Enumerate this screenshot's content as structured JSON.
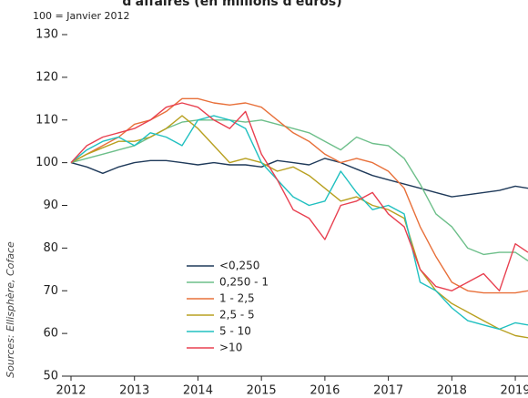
{
  "chart_data": {
    "type": "line",
    "title": "d'affaires (en millions d'euros)",
    "subtitle": "100 = Janvier 2012",
    "source": "Sources: Ellisphère, Coface",
    "x": [
      2012,
      2012.25,
      2012.5,
      2012.75,
      2013,
      2013.25,
      2013.5,
      2013.75,
      2014,
      2014.25,
      2014.5,
      2014.75,
      2015,
      2015.25,
      2015.5,
      2015.75,
      2016,
      2016.25,
      2016.5,
      2016.75,
      2017,
      2017.25,
      2017.5,
      2017.75,
      2018,
      2018.25,
      2018.5,
      2018.75,
      2019,
      2019.2
    ],
    "series": [
      {
        "name": "<0,250",
        "color": "#1f3a5a",
        "values": [
          100,
          99,
          97.5,
          99,
          100,
          100.5,
          100.5,
          100,
          99.5,
          100,
          99.5,
          99.5,
          99,
          100.5,
          100,
          99.5,
          101,
          100,
          98.5,
          97,
          96,
          95,
          94,
          93,
          92,
          92.5,
          93,
          93.5,
          94.5,
          94
        ]
      },
      {
        "name": "0,250 - 1",
        "color": "#6dbf8a",
        "values": [
          100,
          101,
          102,
          103,
          104,
          106,
          108,
          109.5,
          110,
          110,
          110,
          109.5,
          110,
          109,
          108,
          107,
          105,
          103,
          106,
          104.5,
          104,
          101,
          95,
          88,
          85,
          80,
          78.5,
          79,
          79,
          77
        ]
      },
      {
        "name": "1 - 2,5",
        "color": "#e8703a",
        "values": [
          100,
          102,
          104,
          106,
          109,
          110,
          112,
          115,
          115,
          114,
          113.5,
          114,
          113,
          110,
          107,
          105,
          102,
          100,
          101,
          100,
          98,
          94,
          85,
          78,
          72,
          70,
          69.5,
          69.5,
          69.5,
          70
        ]
      },
      {
        "name": "2,5 - 5",
        "color": "#b8a020",
        "values": [
          100,
          102,
          103.5,
          105,
          105,
          106,
          108,
          111,
          108,
          104,
          100,
          101,
          100,
          98,
          99,
          97,
          94,
          91,
          92,
          90,
          89,
          87,
          75,
          70,
          67,
          65,
          63,
          61,
          59.5,
          59
        ]
      },
      {
        "name": "5 - 10",
        "color": "#20c0c0",
        "values": [
          100,
          103,
          105,
          106,
          104,
          107,
          106,
          104,
          110,
          111,
          110,
          108,
          100,
          96,
          92,
          90,
          91,
          98,
          93,
          89,
          90,
          88,
          72,
          70,
          66,
          63,
          62,
          61,
          62.5,
          62
        ]
      },
      {
        "name": ">10",
        "color": "#e84050",
        "values": [
          100,
          104,
          106,
          107,
          108,
          110,
          113,
          114,
          113,
          110,
          108,
          112,
          102,
          96,
          89,
          87,
          82,
          90,
          91,
          93,
          88,
          85,
          75,
          71,
          70,
          72,
          74,
          70,
          81,
          79
        ]
      }
    ],
    "xlim": [
      2012,
      2019.2
    ],
    "xticks": [
      2012,
      2013,
      2014,
      2015,
      2016,
      2017,
      2018,
      2019
    ],
    "ylim": [
      50,
      130
    ],
    "yticks": [
      50,
      60,
      70,
      80,
      90,
      100,
      110,
      120,
      130
    ],
    "grid": false
  }
}
